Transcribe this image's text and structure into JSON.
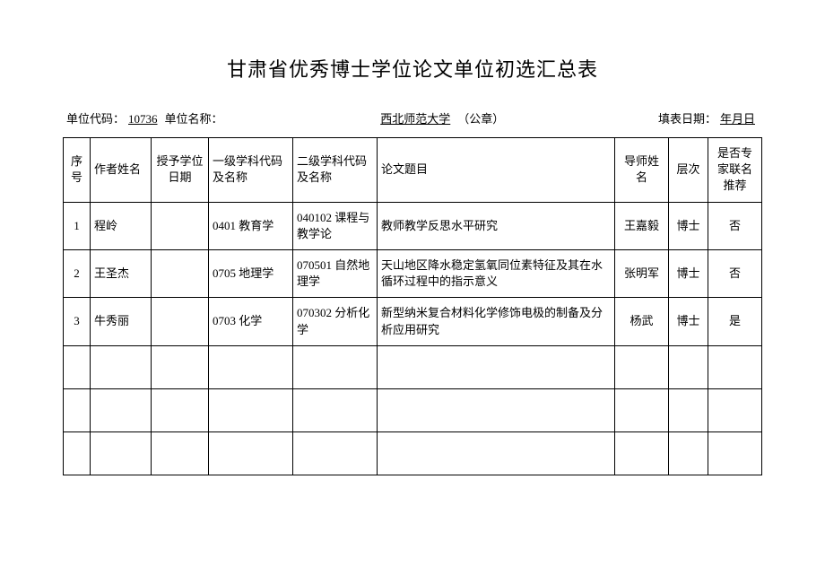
{
  "title": "甘肃省优秀博士学位论文单位初选汇总表",
  "meta": {
    "code_label": "单位代码：",
    "code_value": "10736",
    "name_label": "单位名称：",
    "name_value": "西北师范大学",
    "seal": "（公章）",
    "date_label": "填表日期：",
    "date_value": "年月日"
  },
  "columns": {
    "seq": "序号",
    "author": "作者姓名",
    "award_date": "授予学位日期",
    "discipline1": "一级学科代码及名称",
    "discipline2": "二级学科代码及名称",
    "thesis": "论文题目",
    "advisor": "导师姓名",
    "level": "层次",
    "recommend": "是否专家联名推荐"
  },
  "rows": [
    {
      "seq": "1",
      "author": "程岭",
      "award_date": "",
      "d1": "0401 教育学",
      "d2": "040102 课程与教学论",
      "thesis": "教师教学反思水平研究",
      "advisor": "王嘉毅",
      "level": "博士",
      "rec": "否"
    },
    {
      "seq": "2",
      "author": "王圣杰",
      "award_date": "",
      "d1": "0705 地理学",
      "d2": "070501 自然地理学",
      "thesis": "天山地区降水稳定氢氧同位素特征及其在水循环过程中的指示意义",
      "advisor": "张明军",
      "level": "博士",
      "rec": "否"
    },
    {
      "seq": "3",
      "author": "牛秀丽",
      "award_date": "",
      "d1": "0703 化学",
      "d2": "070302 分析化学",
      "thesis": "新型纳米复合材料化学修饰电极的制备及分析应用研究",
      "advisor": "杨武",
      "level": "博士",
      "rec": "是"
    },
    {
      "seq": "",
      "author": "",
      "award_date": "",
      "d1": "",
      "d2": "",
      "thesis": "",
      "advisor": "",
      "level": "",
      "rec": ""
    },
    {
      "seq": "",
      "author": "",
      "award_date": "",
      "d1": "",
      "d2": "",
      "thesis": "",
      "advisor": "",
      "level": "",
      "rec": ""
    },
    {
      "seq": "",
      "author": "",
      "award_date": "",
      "d1": "",
      "d2": "",
      "thesis": "",
      "advisor": "",
      "level": "",
      "rec": ""
    }
  ]
}
